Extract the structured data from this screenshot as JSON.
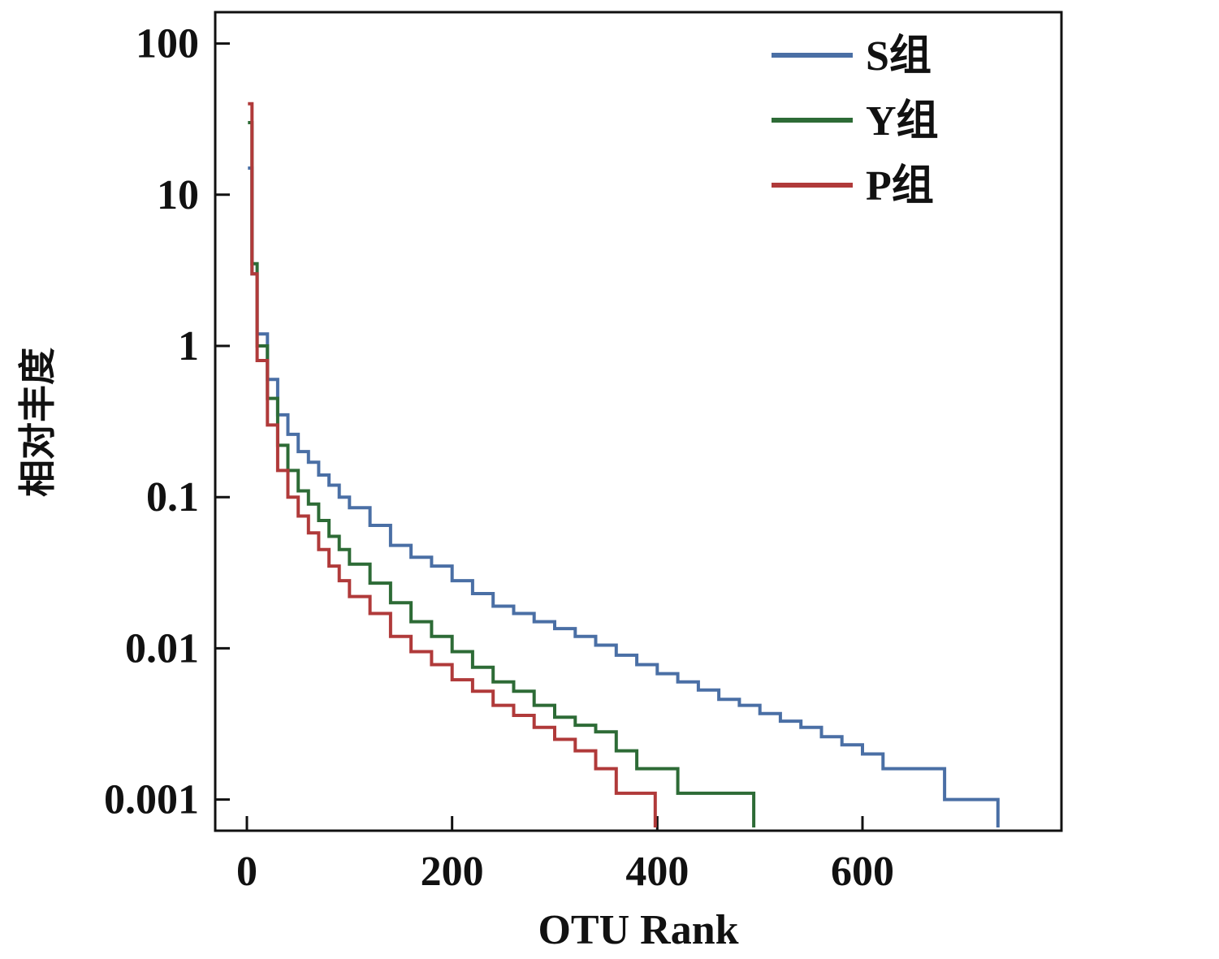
{
  "chart_data": {
    "type": "line",
    "xlabel": "OTU Rank",
    "ylabel": "相对丰度",
    "xlim": [
      -30,
      790
    ],
    "ylim": [
      0.0006,
      200
    ],
    "y_scale": "log",
    "grid": false,
    "legend_position": "top-right",
    "x_ticks": [
      0,
      200,
      400,
      600
    ],
    "x_tick_labels": [
      "0",
      "200",
      "400",
      "600"
    ],
    "y_ticks": [
      100,
      10,
      1,
      0.1,
      0.01,
      0.001
    ],
    "y_tick_labels": [
      "100",
      "10",
      "1",
      "0.1",
      "0.01",
      "0.001"
    ],
    "series": [
      {
        "name": "S组",
        "color": "#4a6fa5",
        "x": [
          1,
          5,
          10,
          20,
          30,
          40,
          50,
          60,
          70,
          80,
          90,
          100,
          120,
          140,
          160,
          180,
          200,
          220,
          240,
          260,
          280,
          300,
          320,
          340,
          360,
          380,
          400,
          420,
          440,
          460,
          480,
          500,
          520,
          540,
          560,
          580,
          600,
          620,
          640,
          660,
          680,
          700,
          720,
          732,
          732
        ],
        "y": [
          15,
          3,
          1.2,
          0.6,
          0.35,
          0.26,
          0.2,
          0.17,
          0.14,
          0.12,
          0.1,
          0.085,
          0.065,
          0.048,
          0.04,
          0.035,
          0.028,
          0.023,
          0.019,
          0.017,
          0.015,
          0.0135,
          0.012,
          0.0105,
          0.009,
          0.0078,
          0.0068,
          0.006,
          0.0053,
          0.0046,
          0.0042,
          0.0037,
          0.0033,
          0.003,
          0.0026,
          0.0023,
          0.002,
          0.0016,
          0.0016,
          0.0016,
          0.001,
          0.001,
          0.001,
          0.001,
          0.00062
        ]
      },
      {
        "name": "Y组",
        "color": "#2d6b36",
        "x": [
          1,
          5,
          10,
          20,
          30,
          40,
          50,
          60,
          70,
          80,
          90,
          100,
          120,
          140,
          160,
          180,
          200,
          220,
          240,
          260,
          280,
          300,
          320,
          340,
          360,
          380,
          400,
          420,
          440,
          460,
          480,
          494,
          494
        ],
        "y": [
          30,
          3.5,
          1.0,
          0.45,
          0.22,
          0.15,
          0.11,
          0.09,
          0.07,
          0.055,
          0.045,
          0.036,
          0.027,
          0.02,
          0.015,
          0.012,
          0.0095,
          0.0075,
          0.006,
          0.0052,
          0.0042,
          0.0035,
          0.0031,
          0.0028,
          0.0021,
          0.0016,
          0.0016,
          0.0011,
          0.0011,
          0.0011,
          0.0011,
          0.0011,
          0.00062
        ]
      },
      {
        "name": "P组",
        "color": "#b03a3a",
        "x": [
          1,
          5,
          10,
          20,
          30,
          40,
          50,
          60,
          70,
          80,
          90,
          100,
          120,
          140,
          160,
          180,
          200,
          220,
          240,
          260,
          280,
          300,
          320,
          340,
          360,
          380,
          398,
          398
        ],
        "y": [
          40,
          3.0,
          0.8,
          0.3,
          0.15,
          0.1,
          0.075,
          0.058,
          0.045,
          0.035,
          0.028,
          0.022,
          0.017,
          0.012,
          0.0095,
          0.0078,
          0.0062,
          0.0052,
          0.0042,
          0.0036,
          0.003,
          0.0025,
          0.0021,
          0.0016,
          0.0011,
          0.0011,
          0.0011,
          0.00062
        ]
      }
    ]
  }
}
